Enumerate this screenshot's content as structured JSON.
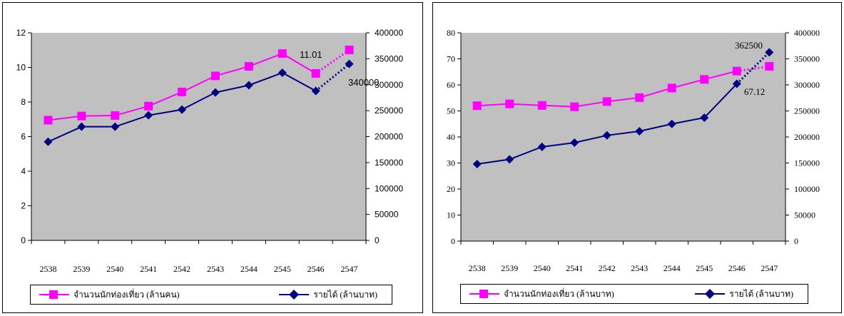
{
  "chart_data": [
    {
      "type": "line",
      "categories": [
        "2538",
        "2539",
        "2540",
        "2541",
        "2542",
        "2543",
        "2544",
        "2545",
        "2546",
        "2547"
      ],
      "series": [
        {
          "name": "จำนวนนักท่องเที่ยว (ล้านคน)",
          "axis": "left",
          "color": "#ff00ff",
          "marker": "square",
          "values": [
            6.95,
            7.19,
            7.22,
            7.76,
            8.58,
            9.51,
            10.06,
            10.8,
            9.65,
            11.01
          ]
        },
        {
          "name": "รายได้ (ล้านบาท)",
          "axis": "right",
          "color": "#000080",
          "marker": "diamond",
          "values": [
            190000,
            219000,
            219000,
            241000,
            252000,
            285000,
            299000,
            323000,
            288000,
            340000
          ]
        }
      ],
      "y_left": {
        "range": [
          0,
          12
        ],
        "ticks": [
          "0",
          "2",
          "4",
          "6",
          "8",
          "10",
          "12"
        ]
      },
      "y_right": {
        "range": [
          0,
          400000
        ],
        "ticks": [
          "0",
          "50000",
          "100000",
          "150000",
          "200000",
          "250000",
          "300000",
          "350000",
          "400000"
        ]
      },
      "annotations": [
        "11.01",
        "340000"
      ],
      "projection_last_segment": "dotted",
      "grid": false,
      "legend_position": "bottom"
    },
    {
      "type": "line",
      "categories": [
        "2538",
        "2539",
        "2540",
        "2541",
        "2542",
        "2543",
        "2544",
        "2545",
        "2546",
        "2547"
      ],
      "series": [
        {
          "name": "จำนวนนักท่องเที่ยว (ล้านบาท)",
          "axis": "left",
          "color": "#ff00ff",
          "marker": "square",
          "values": [
            52.0,
            52.7,
            52.1,
            51.6,
            53.6,
            55.1,
            58.8,
            62.1,
            65.3,
            67.12
          ]
        },
        {
          "name": "รายได้ (ล้านบาท)",
          "axis": "right",
          "color": "#000080",
          "marker": "diamond",
          "values": [
            148000,
            157000,
            181000,
            189000,
            203000,
            211000,
            225000,
            237000,
            302000,
            362500
          ]
        }
      ],
      "y_left": {
        "range": [
          0,
          80
        ],
        "ticks": [
          "0",
          "10",
          "20",
          "30",
          "40",
          "50",
          "60",
          "70",
          "80"
        ]
      },
      "y_right": {
        "range": [
          0,
          400000
        ],
        "ticks": [
          "0",
          "50000",
          "100000",
          "150000",
          "200000",
          "250000",
          "300000",
          "350000",
          "400000"
        ]
      },
      "annotations": [
        "362500",
        "67.12"
      ],
      "projection_last_segment": "dotted",
      "grid": false,
      "legend_position": "bottom"
    }
  ],
  "colors": {
    "plot_area": "#c0c0c0",
    "series_pink": "#ff00ff",
    "series_navy": "#000080"
  }
}
